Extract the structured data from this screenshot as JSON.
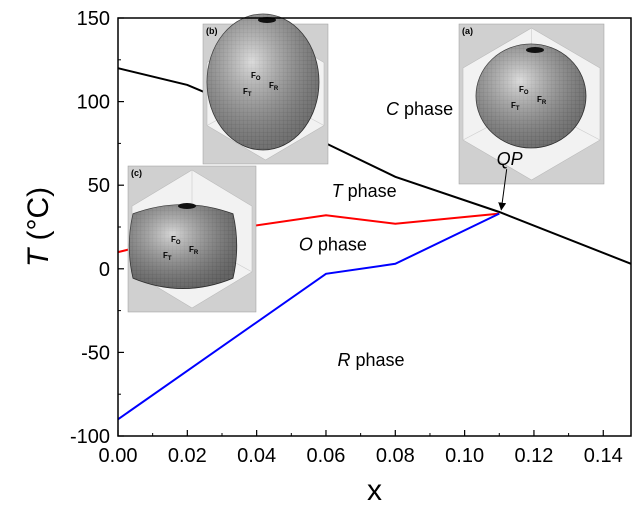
{
  "chart_data": {
    "type": "line",
    "xlabel": "x",
    "ylabel": "T (°C)",
    "xlim": [
      0.0,
      0.148
    ],
    "ylim": [
      -100,
      150
    ],
    "x_ticks": [
      "0.00",
      "0.02",
      "0.04",
      "0.06",
      "0.08",
      "0.10",
      "0.12",
      "0.14"
    ],
    "y_ticks": [
      "-100",
      "-50",
      "0",
      "50",
      "100",
      "150"
    ],
    "series": [
      {
        "color": "#000000",
        "x": [
          0.0,
          0.02,
          0.06,
          0.08,
          0.11,
          0.148
        ],
        "y": [
          120,
          110,
          75,
          55,
          34,
          3
        ]
      },
      {
        "color": "#ff0000",
        "x": [
          0.0,
          0.02,
          0.06,
          0.08,
          0.11
        ],
        "y": [
          10,
          20,
          32,
          27,
          33
        ]
      },
      {
        "color": "#0000ff",
        "x": [
          0.0,
          0.06,
          0.08,
          0.11
        ],
        "y": [
          -90,
          -3,
          3,
          33
        ]
      }
    ],
    "annotations": [
      {
        "text": "C phase",
        "italic": "C",
        "x": 0.087,
        "y": 92
      },
      {
        "text": "T phase",
        "italic": "T",
        "x": 0.071,
        "y": 43
      },
      {
        "text": "O phase",
        "italic": "O",
        "x": 0.062,
        "y": 11
      },
      {
        "text": "R phase",
        "italic": "R",
        "x": 0.073,
        "y": -58
      },
      {
        "text": "QP",
        "italic": "QP",
        "x": 0.113,
        "y": 62,
        "arrow_to": [
          0.11,
          33
        ]
      }
    ],
    "insets": [
      {
        "label": "(b)",
        "shape": "spherical",
        "polar_labels": [
          "F_O",
          "F_R",
          "F_T"
        ]
      },
      {
        "label": "(a)",
        "shape": "oblate",
        "polar_labels": [
          "F_O",
          "F_R",
          "F_T"
        ]
      },
      {
        "label": "(c)",
        "shape": "cubic",
        "polar_labels": [
          "F_O",
          "F_R",
          "F_T"
        ]
      }
    ]
  }
}
